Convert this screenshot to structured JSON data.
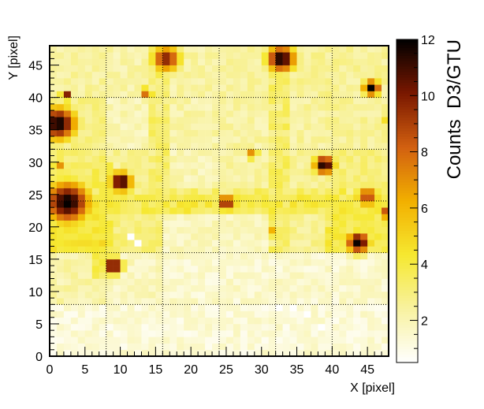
{
  "chart_data": {
    "type": "heatmap",
    "title": "",
    "xlabel": "X [pixel]",
    "ylabel": "Y [pixel]",
    "zlabel": "Counts  D3/GTU",
    "xlim": [
      0,
      48
    ],
    "ylim": [
      0,
      48
    ],
    "zlim": [
      0.5,
      12
    ],
    "x_ticks": [
      "0",
      "5",
      "10",
      "15",
      "20",
      "25",
      "30",
      "35",
      "40",
      "45"
    ],
    "y_ticks": [
      "0",
      "5",
      "10",
      "15",
      "20",
      "25",
      "30",
      "35",
      "40",
      "45"
    ],
    "z_ticks": [
      "2",
      "4",
      "6",
      "8",
      "10",
      "12"
    ],
    "grid": "dotted, every 8 pixels",
    "colormap": [
      "#ffffff",
      "#f8f2a0",
      "#f6e830",
      "#f2b000",
      "#d26010",
      "#7a1800",
      "#000000"
    ],
    "background_level": 1.6,
    "regions": [
      {
        "x": [
          0,
          8
        ],
        "y": [
          40,
          48
        ],
        "level": 2.4
      },
      {
        "x": [
          8,
          16
        ],
        "y": [
          40,
          48
        ],
        "level": 2.2
      },
      {
        "x": [
          16,
          24
        ],
        "y": [
          40,
          48
        ],
        "level": 2.3
      },
      {
        "x": [
          24,
          32
        ],
        "y": [
          40,
          48
        ],
        "level": 2.4
      },
      {
        "x": [
          32,
          40
        ],
        "y": [
          40,
          48
        ],
        "level": 2.6
      },
      {
        "x": [
          40,
          48
        ],
        "y": [
          40,
          48
        ],
        "level": 2.5
      },
      {
        "x": [
          0,
          8
        ],
        "y": [
          32,
          40
        ],
        "level": 2.8
      },
      {
        "x": [
          8,
          16
        ],
        "y": [
          32,
          40
        ],
        "level": 2.0
      },
      {
        "x": [
          16,
          24
        ],
        "y": [
          32,
          40
        ],
        "level": 2.2
      },
      {
        "x": [
          24,
          32
        ],
        "y": [
          32,
          40
        ],
        "level": 2.3
      },
      {
        "x": [
          32,
          40
        ],
        "y": [
          32,
          40
        ],
        "level": 2.4
      },
      {
        "x": [
          40,
          48
        ],
        "y": [
          32,
          40
        ],
        "level": 2.5
      },
      {
        "x": [
          0,
          8
        ],
        "y": [
          24,
          32
        ],
        "level": 3.2
      },
      {
        "x": [
          8,
          16
        ],
        "y": [
          24,
          32
        ],
        "level": 2.6
      },
      {
        "x": [
          16,
          24
        ],
        "y": [
          24,
          32
        ],
        "level": 2.0
      },
      {
        "x": [
          24,
          32
        ],
        "y": [
          24,
          32
        ],
        "level": 2.3
      },
      {
        "x": [
          32,
          40
        ],
        "y": [
          24,
          32
        ],
        "level": 2.6
      },
      {
        "x": [
          40,
          48
        ],
        "y": [
          24,
          32
        ],
        "level": 3.0
      },
      {
        "x": [
          0,
          8
        ],
        "y": [
          16,
          24
        ],
        "level": 4.2
      },
      {
        "x": [
          8,
          16
        ],
        "y": [
          16,
          24
        ],
        "level": 3.0
      },
      {
        "x": [
          16,
          24
        ],
        "y": [
          16,
          24
        ],
        "level": 1.8
      },
      {
        "x": [
          24,
          32
        ],
        "y": [
          16,
          24
        ],
        "level": 1.8
      },
      {
        "x": [
          32,
          40
        ],
        "y": [
          16,
          24
        ],
        "level": 2.6
      },
      {
        "x": [
          40,
          48
        ],
        "y": [
          16,
          24
        ],
        "level": 3.8
      },
      {
        "x": [
          0,
          8
        ],
        "y": [
          8,
          16
        ],
        "level": 2.2
      },
      {
        "x": [
          8,
          16
        ],
        "y": [
          8,
          16
        ],
        "level": 1.8
      },
      {
        "x": [
          16,
          48
        ],
        "y": [
          8,
          16
        ],
        "level": 1.5
      },
      {
        "x": [
          0,
          48
        ],
        "y": [
          0,
          8
        ],
        "level": 1.3
      }
    ],
    "hotspots": [
      {
        "x": 16.5,
        "y": 46,
        "r": 2.2,
        "peak": 10
      },
      {
        "x": 32.8,
        "y": 46,
        "r": 2.2,
        "peak": 12
      },
      {
        "x": 13.8,
        "y": 40.8,
        "r": 0.8,
        "peak": 10
      },
      {
        "x": 45.6,
        "y": 41.5,
        "r": 1.3,
        "peak": 12
      },
      {
        "x": 1.2,
        "y": 36,
        "r": 2.8,
        "peak": 12
      },
      {
        "x": 2.3,
        "y": 40.3,
        "r": 0.8,
        "peak": 11
      },
      {
        "x": 47.2,
        "y": 36.2,
        "r": 0.8,
        "peak": 6
      },
      {
        "x": 10.1,
        "y": 27,
        "r": 1.7,
        "peak": 12
      },
      {
        "x": 38.9,
        "y": 29.6,
        "r": 1.6,
        "peak": 12
      },
      {
        "x": 28.8,
        "y": 31.2,
        "r": 0.8,
        "peak": 9
      },
      {
        "x": 1.4,
        "y": 29.5,
        "r": 1.2,
        "peak": 7
      },
      {
        "x": 2.5,
        "y": 23.8,
        "r": 3.5,
        "peak": 12
      },
      {
        "x": 25,
        "y": 23.8,
        "r": 1.2,
        "peak": 11
      },
      {
        "x": 45,
        "y": 24.7,
        "r": 1.8,
        "peak": 9
      },
      {
        "x": 47.6,
        "y": 22.2,
        "r": 1.1,
        "peak": 9
      },
      {
        "x": 43.7,
        "y": 17.6,
        "r": 1.8,
        "peak": 12
      },
      {
        "x": 31.8,
        "y": 19.5,
        "r": 0.8,
        "peak": 7
      },
      {
        "x": 9,
        "y": 14,
        "r": 1.4,
        "peak": 12
      },
      {
        "x": 7.5,
        "y": 13,
        "r": 0.6,
        "peak": 6
      },
      {
        "x": 7.2,
        "y": 17.6,
        "r": 0.7,
        "peak": 6
      }
    ],
    "lines": [
      {
        "axis": "row",
        "value": 23.5,
        "from": 0,
        "to": 48,
        "level": 3.8
      },
      {
        "axis": "row",
        "value": 24.5,
        "from": 0,
        "to": 48,
        "level": 3.2
      },
      {
        "axis": "col",
        "value": 15.5,
        "from": 24,
        "to": 48,
        "level": 3.2
      },
      {
        "axis": "col",
        "value": 32.5,
        "from": 16,
        "to": 48,
        "level": 3.2
      },
      {
        "axis": "col",
        "value": 7.5,
        "from": 12,
        "to": 30,
        "level": 3.6
      },
      {
        "axis": "col",
        "value": 40.5,
        "from": 16,
        "to": 26,
        "level": 3.8
      }
    ],
    "empty_pixels": [
      [
        11,
        18
      ],
      [
        12,
        17
      ],
      [
        32,
        7
      ],
      [
        34,
        7
      ],
      [
        36,
        6
      ],
      [
        38,
        4
      ]
    ]
  }
}
